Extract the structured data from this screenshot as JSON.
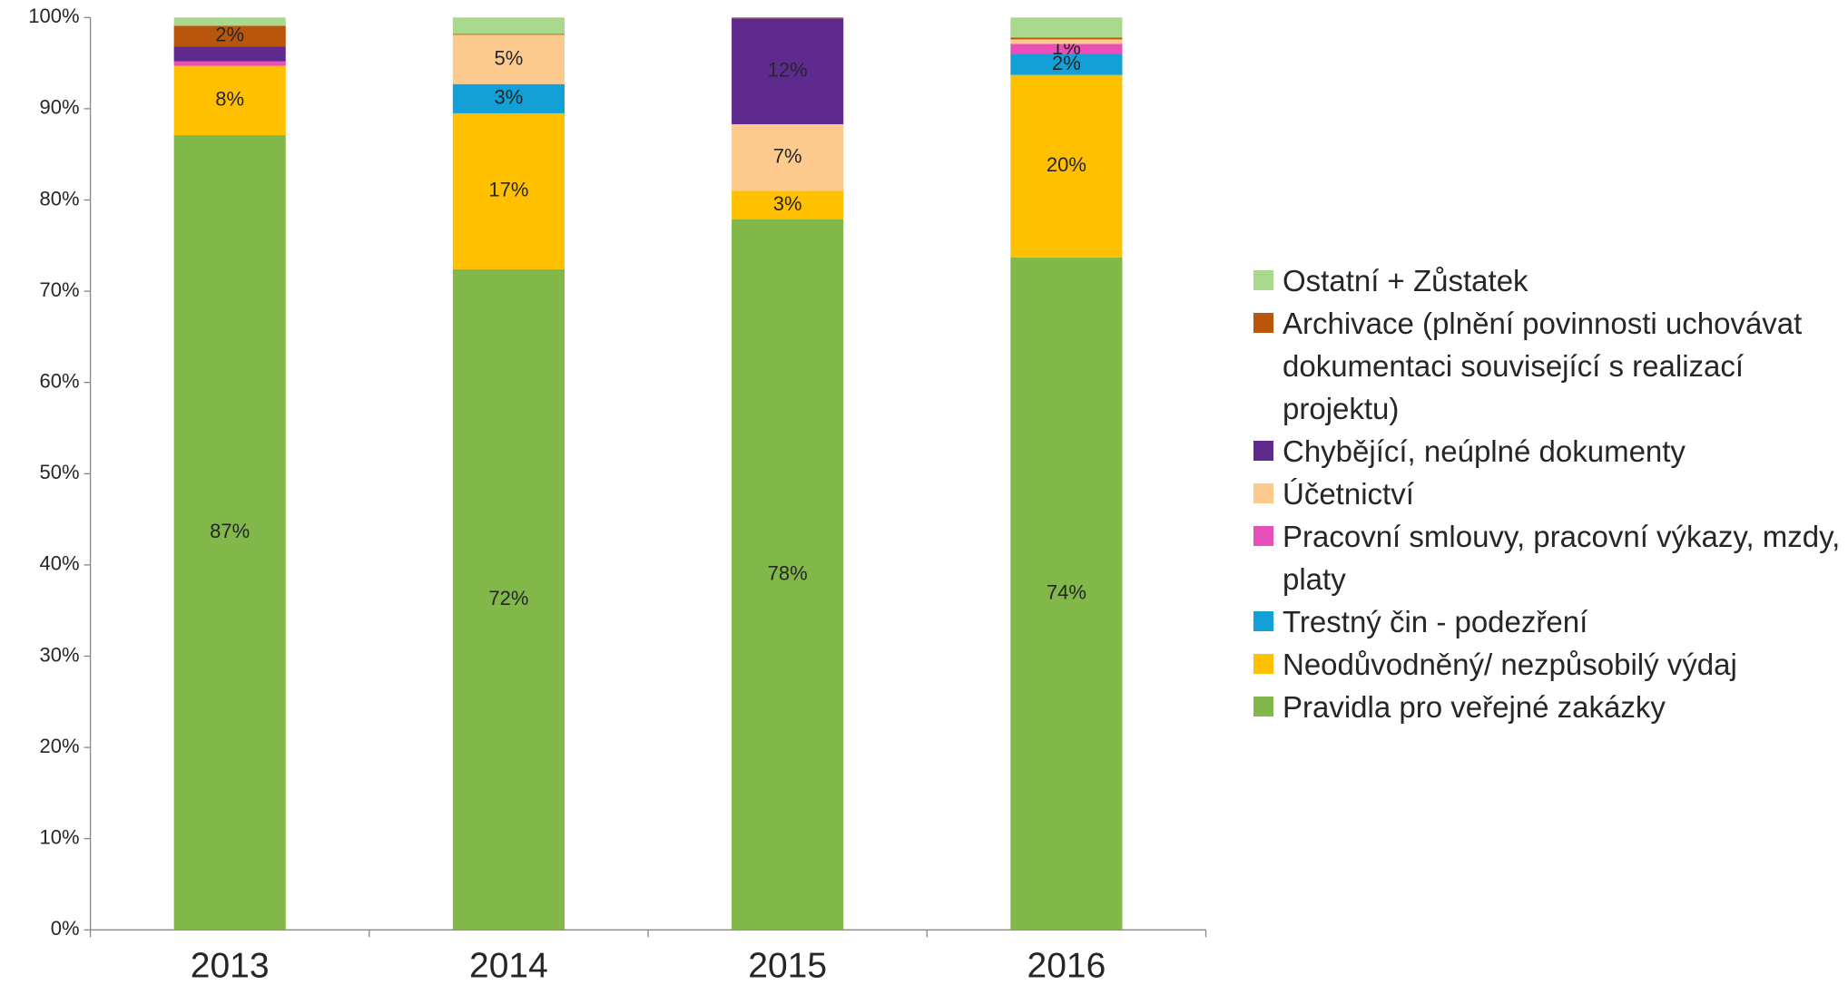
{
  "chart_data": {
    "type": "stacked_bar",
    "categories": [
      "2013",
      "2014",
      "2015",
      "2016"
    ],
    "series": [
      {
        "name": "Pravidla pro veřejné zakázky",
        "color": "#82b74a",
        "values": [
          87.1,
          72.4,
          77.9,
          73.7
        ],
        "value_labels": [
          "87%",
          "72%",
          "78%",
          "74%"
        ]
      },
      {
        "name": "Neodůvodněný/ nezpůsobilý výdaj",
        "color": "#ffc000",
        "values": [
          7.6,
          17.1,
          3.1,
          20.0
        ],
        "value_labels": [
          "8%",
          "17%",
          "3%",
          "20%"
        ]
      },
      {
        "name": "Trestný čin - podezření",
        "color": "#12a0d7",
        "values": [
          0,
          3.2,
          0,
          2.3
        ],
        "value_labels": [
          null,
          "3%",
          null,
          "2%"
        ]
      },
      {
        "name": "Pracovní smlouvy, pracovní výkazy, mzdy, platy",
        "color": "#e84fb8",
        "values": [
          0.5,
          0,
          0,
          1.1
        ],
        "value_labels": [
          null,
          null,
          null,
          "1%"
        ]
      },
      {
        "name": "Účetnictví",
        "color": "#fdca8e",
        "values": [
          0,
          5.4,
          7.3,
          0.5
        ],
        "value_labels": [
          null,
          "5%",
          "7%",
          null
        ]
      },
      {
        "name": "Chybějící, neúplné dokumenty",
        "color": "#5f2a8e",
        "values": [
          1.6,
          0,
          11.6,
          0
        ],
        "value_labels": [
          null,
          null,
          "12%",
          null
        ]
      },
      {
        "name": "Archivace (plnění povinnosti uchovávat dokumentaci související s realizací projektu)",
        "color": "#b9560b",
        "values": [
          2.3,
          0.1,
          0.1,
          0.2
        ],
        "value_labels": [
          "2%",
          null,
          null,
          null
        ]
      },
      {
        "name": "Ostatní + Zůstatek",
        "color": "#a9d98c",
        "values": [
          0.9,
          1.8,
          0,
          2.2
        ],
        "value_labels": [
          null,
          null,
          null,
          null
        ]
      }
    ],
    "ylim": [
      0,
      100
    ],
    "yticks": [
      {
        "value": 0,
        "label": "0%"
      },
      {
        "value": 10,
        "label": "10%"
      },
      {
        "value": 20,
        "label": "20%"
      },
      {
        "value": 30,
        "label": "30%"
      },
      {
        "value": 40,
        "label": "40%"
      },
      {
        "value": 50,
        "label": "50%"
      },
      {
        "value": 60,
        "label": "60%"
      },
      {
        "value": 70,
        "label": "70%"
      },
      {
        "value": 80,
        "label": "80%"
      },
      {
        "value": 90,
        "label": "90%"
      },
      {
        "value": 100,
        "label": "100%"
      }
    ],
    "legend": "right"
  }
}
